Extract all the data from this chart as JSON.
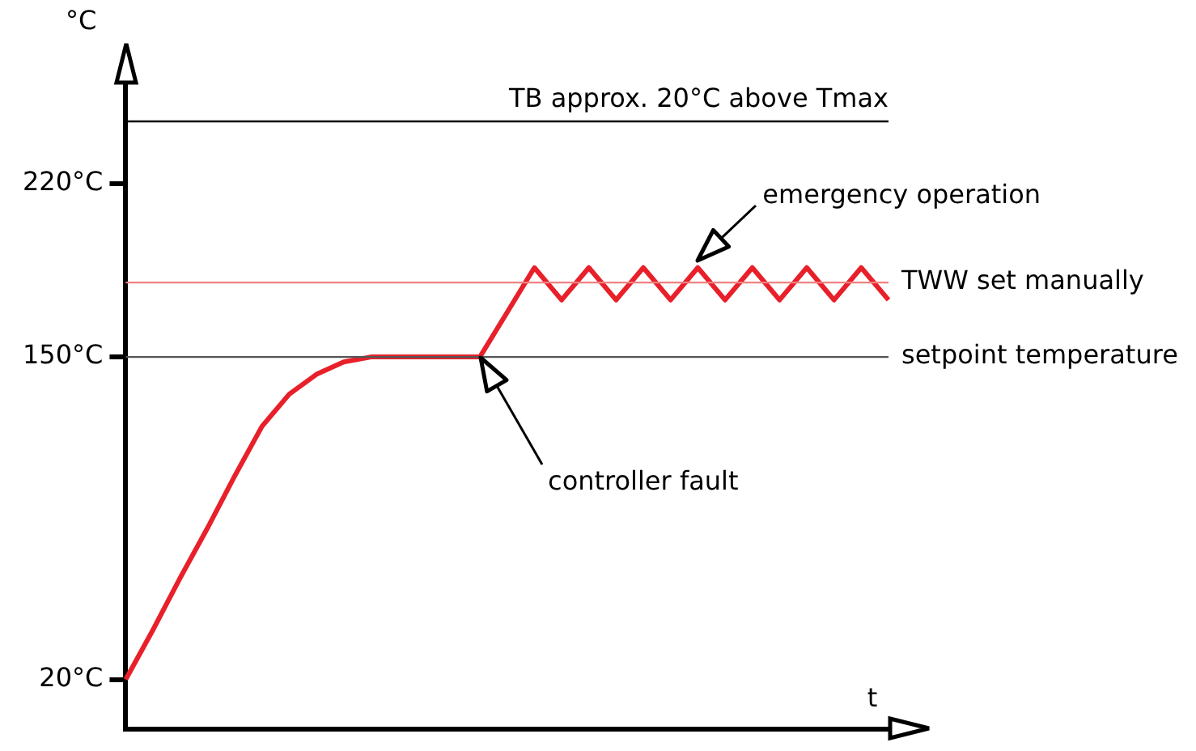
{
  "chart_data": {
    "type": "line",
    "ylabel": "°C",
    "xlabel": "t",
    "categories": [
      null,
      null,
      null,
      null,
      null,
      null,
      null,
      null,
      null,
      null,
      null,
      null,
      null,
      null,
      null,
      null,
      null,
      null,
      null,
      null,
      null,
      null,
      null,
      null,
      null,
      null,
      null,
      null,
      null
    ],
    "series": [
      {
        "color": "#e8202a",
        "values": [
          20,
          40,
          61,
          81,
          102,
          122,
          135,
          143,
          148,
          150,
          150,
          150,
          150,
          150,
          168,
          186,
          173,
          186,
          173,
          186,
          173,
          186,
          173,
          186,
          173,
          186,
          173,
          186,
          173
        ]
      }
    ],
    "ylim": [
      0,
      260
    ],
    "yticks": [
      {
        "value": 20,
        "label": "20°C"
      },
      {
        "value": 150,
        "label": "150°C"
      },
      {
        "value": 220,
        "label": "220°C"
      }
    ],
    "ref_lines": [
      {
        "axis": "y",
        "value": 245,
        "label": "TB approx. 20°C above Tmax",
        "color": "#000000"
      },
      {
        "axis": "y",
        "value": 180,
        "label": "TWW set manually",
        "color": "#f08080"
      },
      {
        "axis": "y",
        "value": 150,
        "label": "setpoint temperature",
        "color": "#555555"
      }
    ],
    "annotations": [
      "emergency operation",
      "controller fault"
    ],
    "grid": false,
    "legend": false,
    "marker": "none",
    "line_style": "solid"
  }
}
